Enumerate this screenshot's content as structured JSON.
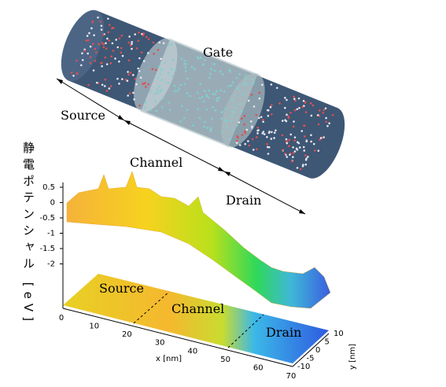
{
  "gate_label": "Gate",
  "regions": [
    "Source",
    "Channel",
    "Drain"
  ],
  "plot": {
    "z_label": "静電ポテンシャル [eV]",
    "z_ticks": [
      "0.5",
      "0",
      "-0.5",
      "-1",
      "-1.5",
      "-2"
    ],
    "x_ticks": [
      "0",
      "10",
      "20",
      "30",
      "40",
      "50",
      "60",
      "70"
    ],
    "x_label": "x [nm]",
    "y_ticks": [
      "10",
      "5",
      "0",
      "-5",
      "-10"
    ],
    "y_label": "y [nm]",
    "map_labels": [
      "Source",
      "Channel",
      "Drain"
    ]
  }
}
